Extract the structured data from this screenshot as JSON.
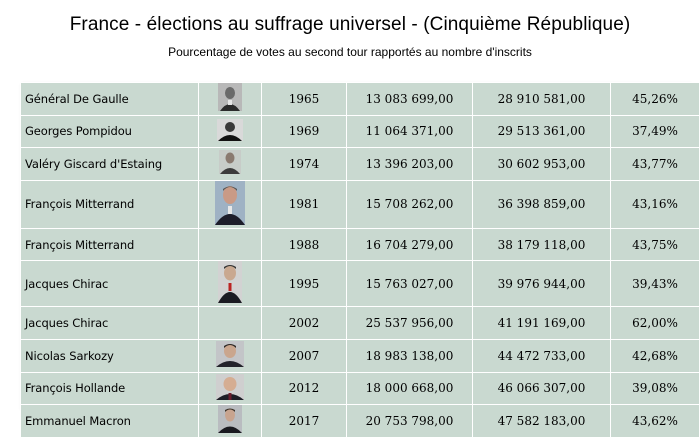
{
  "header": {
    "title": "France - élections au suffrage universel - (Cinquième République)",
    "subtitle": "Pourcentage de votes au second tour rapportés au nombre d'inscrits"
  },
  "table": {
    "background": "#c9d9d0",
    "rows": [
      {
        "name": "Général De Gaulle",
        "year": "1965",
        "votes": "13 083 699,00",
        "inscrits": "28 910 581,00",
        "pct": "45,26%",
        "portrait": "de-gaulle-portrait"
      },
      {
        "name": "Georges Pompidou",
        "year": "1969",
        "votes": "11 064 371,00",
        "inscrits": "29 513 361,00",
        "pct": "37,49%",
        "portrait": "pompidou-portrait"
      },
      {
        "name": "Valéry Giscard d'Estaing",
        "year": "1974",
        "votes": "13 396 203,00",
        "inscrits": "30 602 953,00",
        "pct": "43,77%",
        "portrait": "giscard-portrait"
      },
      {
        "name": "François Mitterrand",
        "year": "1981",
        "votes": "15 708 262,00",
        "inscrits": "36 398 859,00",
        "pct": "43,16%",
        "portrait": "mitterrand-portrait"
      },
      {
        "name": "François Mitterrand",
        "year": "1988",
        "votes": "16 704 279,00",
        "inscrits": "38 179 118,00",
        "pct": "43,75%",
        "portrait": "none"
      },
      {
        "name": "Jacques Chirac",
        "year": "1995",
        "votes": "15 763 027,00",
        "inscrits": "39 976 944,00",
        "pct": "39,43%",
        "portrait": "chirac-portrait"
      },
      {
        "name": "Jacques Chirac",
        "year": "2002",
        "votes": "25 537 956,00",
        "inscrits": "41 191 169,00",
        "pct": "62,00%",
        "portrait": "none"
      },
      {
        "name": "Nicolas Sarkozy",
        "year": "2007",
        "votes": "18 983 138,00",
        "inscrits": "44 472 733,00",
        "pct": "42,68%",
        "portrait": "sarkozy-portrait"
      },
      {
        "name": "François Hollande",
        "year": "2012",
        "votes": "18 000 668,00",
        "inscrits": "46 066 307,00",
        "pct": "39,08%",
        "portrait": "hollande-portrait"
      },
      {
        "name": "Emmanuel Macron",
        "year": "2017",
        "votes": "20 753 798,00",
        "inscrits": "47 582 183,00",
        "pct": "43,62%",
        "portrait": "macron-portrait"
      }
    ]
  }
}
